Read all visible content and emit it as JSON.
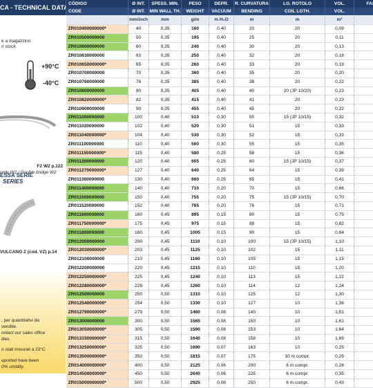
{
  "left_panel": {
    "header": "CA - TECHNICAL DATA",
    "stock_line1": "e a magazzino",
    "stock_line2": "n stock",
    "temp_max": "+90°C",
    "temp_min": "-40°C",
    "ref1": "F2 W2 p.122",
    "ref2": "onte W2 / Double bridge W2",
    "series1": "ESSA SERIE",
    "series2": "SERIES",
    "ref3": "VULCANO Z (cod. VZ) p.14",
    "note1": ", per quantitativi da",
    "note2": "vendite.",
    "note3": "ontact our sales office",
    "note4": "ities.",
    "note5": "o stati misurati a 23°C",
    "note6": "eported have been",
    "note7": "0% umidity."
  },
  "table": {
    "header1": [
      "CÓDIGO",
      "Ø INT.",
      "SPESS. MIN.",
      "PESO",
      "DEPR.",
      "R. CURVATURA",
      "LG. ROTOLO",
      "VOL.",
      "FASC"
    ],
    "header2": [
      "CODE",
      "Ø INT.",
      "MIN WALL TH.",
      "WEIGHT",
      "VACUUM",
      "BENDING",
      "COIL LGTH.",
      "VOL."
    ],
    "units": [
      "mm/inch",
      "mm",
      "g/m",
      "m H₂O",
      "m",
      "m",
      "m³"
    ],
    "rows": [
      [
        "ZR010400000000*",
        "40",
        "0,35",
        "160",
        "0,40",
        "20",
        "20",
        "0,09"
      ],
      [
        "ZR010500000000",
        "50",
        "0,35",
        "195",
        "0,40",
        "25",
        "20",
        "0,11"
      ],
      [
        "ZR010600000000",
        "60",
        "0,35",
        "240",
        "0,40",
        "30",
        "20",
        "0,13"
      ],
      [
        "ZR010630000000",
        "63",
        "0,35",
        "250",
        "0,40",
        "32",
        "20",
        "0,18"
      ],
      [
        "ZR010650000000*",
        "65",
        "0,35",
        "260",
        "0,40",
        "33",
        "20",
        "0,19"
      ],
      [
        "ZR010700000000",
        "70",
        "0,35",
        "360",
        "0,40",
        "35",
        "20",
        "0,20"
      ],
      [
        "ZR010760000000",
        "76",
        "0,35",
        "385",
        "0,40",
        "38",
        "20",
        "0,22"
      ],
      [
        "ZR010800000000",
        "80",
        "0,35",
        "405",
        "0,40",
        "40",
        "20 (JP 10/20)",
        "0,23"
      ],
      [
        "ZR010820000000*",
        "82",
        "0,35",
        "415",
        "0,40",
        "41",
        "20",
        "0,23"
      ],
      [
        "ZR010900000000",
        "90",
        "0,35",
        "455",
        "0,40",
        "45",
        "20",
        "0,22"
      ],
      [
        "ZR011000000000",
        "100",
        "0,40",
        "510",
        "0,30",
        "50",
        "15 (JP 10/15)",
        "0,32"
      ],
      [
        "ZR011020000000",
        "102",
        "0,40",
        "520",
        "0,30",
        "51",
        "15",
        "0,33"
      ],
      [
        "ZR011040000000*",
        "104",
        "0,40",
        "530",
        "0,30",
        "52",
        "15",
        "0,33"
      ],
      [
        "ZR011100000000",
        "110",
        "0,40",
        "560",
        "0,30",
        "55",
        "15",
        "0,35"
      ],
      [
        "ZR011150000000*",
        "115",
        "0,40",
        "580",
        "0,25",
        "58",
        "15",
        "0,36"
      ],
      [
        "ZR011200000000",
        "120",
        "0,40",
        "605",
        "0,25",
        "60",
        "15 (JP 10/15)",
        "0,37"
      ],
      [
        "ZR011270000000*",
        "127",
        "0,40",
        "640",
        "0,25",
        "64",
        "15",
        "0,39"
      ],
      [
        "ZR011300000000",
        "130",
        "0,40",
        "660",
        "0,25",
        "65",
        "15",
        "0,41"
      ],
      [
        "ZR011400000000",
        "140",
        "0,40",
        "710",
        "0,20",
        "70",
        "15",
        "0,66"
      ],
      [
        "ZR011500000000",
        "150",
        "0,40",
        "755",
        "0,20",
        "75",
        "15 (JP 10/15)",
        "0,70"
      ],
      [
        "ZR011520000000",
        "152",
        "0,40",
        "765",
        "0,20",
        "76",
        "15",
        "0,71"
      ],
      [
        "ZR011600000000",
        "160",
        "0,45",
        "895",
        "0,15",
        "80",
        "15",
        "0,75"
      ],
      [
        "ZR011750000000*",
        "175",
        "0,45",
        "975",
        "0,15",
        "88",
        "15",
        "0,82"
      ],
      [
        "ZR011800000000",
        "180",
        "0,45",
        "1005",
        "0,15",
        "90",
        "15",
        "0,84"
      ],
      [
        "ZR012000000000",
        "200",
        "0,45",
        "1110",
        "0,10",
        "100",
        "15 (JP 10/15)",
        "1,10"
      ],
      [
        "ZR012030000000*",
        "203",
        "0,45",
        "1125",
        "0,10",
        "102",
        "15",
        "1,11"
      ],
      [
        "ZR012100000000",
        "210",
        "0,45",
        "1160",
        "0,10",
        "105",
        "15",
        "1,15"
      ],
      [
        "ZR012200000000",
        "220",
        "0,45",
        "1215",
        "0,10",
        "110",
        "15",
        "1,20"
      ],
      [
        "ZR012250000000*",
        "225",
        "0,45",
        "1240",
        "0,10",
        "113",
        "15",
        "1,22"
      ],
      [
        "ZR012280000000*",
        "228",
        "0,45",
        "1260",
        "0,10",
        "114",
        "12",
        "1,24"
      ],
      [
        "ZR012500000000",
        "250",
        "0,50",
        "1310",
        "0,10",
        "125",
        "12",
        "1,30"
      ],
      [
        "ZR012540000000*",
        "254",
        "0,50",
        "1330",
        "0,10",
        "127",
        "10",
        "1,36"
      ],
      [
        "ZR012790000000*",
        "279",
        "0,50",
        "1460",
        "0,08",
        "140",
        "10",
        "1,51"
      ],
      [
        "ZR013000000000",
        "300",
        "0,50",
        "1565",
        "0,08",
        "150",
        "10",
        "1,61"
      ],
      [
        "ZR013050000000*",
        "305",
        "0,50",
        "1590",
        "0,08",
        "153",
        "10",
        "1,64"
      ],
      [
        "ZR013150000000*",
        "315",
        "0,50",
        "1640",
        "0,08",
        "158",
        "10",
        "1,69"
      ],
      [
        "ZR013250000000*",
        "325",
        "0,50",
        "1690",
        "0,07",
        "163",
        "10",
        "0,25"
      ],
      [
        "ZR013500000000*",
        "350",
        "0,50",
        "1815",
        "0,07",
        "175",
        "10 m compr.",
        "0,29"
      ],
      [
        "ZR014000000000*",
        "400",
        "0,50",
        "2125",
        "0,06",
        "200",
        "6 m compr.",
        "0,28"
      ],
      [
        "ZR014500000000*",
        "450",
        "0,50",
        "2640",
        "0,06",
        "225",
        "6 m compr.",
        "0,35"
      ],
      [
        "ZR015000000000*",
        "500",
        "0,50",
        "2925",
        "0,06",
        "250",
        "6 m compr.",
        "0,43"
      ]
    ]
  }
}
